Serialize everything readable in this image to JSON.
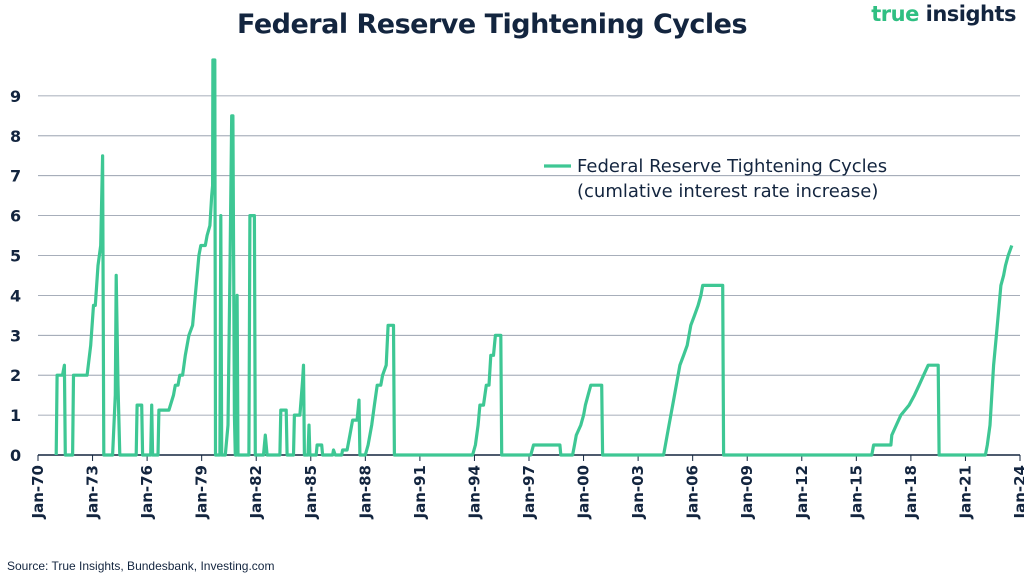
{
  "header": {
    "title": "Federal Reserve Tightening Cycles"
  },
  "brand": {
    "word1": "true",
    "word2": "insights"
  },
  "footer": {
    "source": "Source: True Insights, Bundesbank, Investing.com"
  },
  "colors": {
    "line": "#3ec794",
    "text": "#13253f",
    "grid": "#8a93a3",
    "axis": "#13253f"
  },
  "chart_data": {
    "type": "line",
    "title": "Federal Reserve Tightening Cycles",
    "xlabel": "",
    "ylabel": "",
    "ylim": [
      0,
      10
    ],
    "y_ticks": [
      0,
      1,
      2,
      3,
      4,
      5,
      6,
      7,
      8,
      9
    ],
    "x_range": [
      1970.0,
      2024.0
    ],
    "x_tick_labels": [
      "Jan-70",
      "Jan-73",
      "Jan-76",
      "Jan-79",
      "Jan-82",
      "Jan-85",
      "Jan-88",
      "Jan-91",
      "Jan-94",
      "Jan-97",
      "Jan-00",
      "Jan-03",
      "Jan-06",
      "Jan-09",
      "Jan-12",
      "Jan-15",
      "Jan-18",
      "Jan-21",
      "Jan-24"
    ],
    "x_tick_years": [
      1970,
      1973,
      1976,
      1979,
      1982,
      1985,
      1988,
      1991,
      1994,
      1997,
      2000,
      2003,
      2006,
      2009,
      2012,
      2015,
      2018,
      2021,
      2024
    ],
    "grid": "horizontal",
    "legend": {
      "position": "top-right",
      "line1": "Federal Reserve Tightening Cycles",
      "line2": "(cumlative interest rate increase)"
    },
    "series": [
      {
        "name": "Federal Reserve Tightening Cycles (cumlative interest rate increase)",
        "points": [
          [
            1971.0,
            0
          ],
          [
            1971.05,
            2.0
          ],
          [
            1971.35,
            2.0
          ],
          [
            1971.45,
            2.25
          ],
          [
            1971.5,
            0
          ],
          [
            1971.9,
            0
          ],
          [
            1971.95,
            2.0
          ],
          [
            1972.7,
            2.0
          ],
          [
            1972.9,
            2.75
          ],
          [
            1973.05,
            3.75
          ],
          [
            1973.15,
            3.75
          ],
          [
            1973.3,
            4.75
          ],
          [
            1973.45,
            5.25
          ],
          [
            1973.55,
            7.5
          ],
          [
            1973.62,
            0
          ],
          [
            1974.1,
            0
          ],
          [
            1974.25,
            1.5
          ],
          [
            1974.3,
            4.5
          ],
          [
            1974.4,
            1.75
          ],
          [
            1974.5,
            0
          ],
          [
            1975.4,
            0
          ],
          [
            1975.45,
            1.25
          ],
          [
            1975.7,
            1.25
          ],
          [
            1975.75,
            0
          ],
          [
            1976.2,
            0
          ],
          [
            1976.25,
            1.25
          ],
          [
            1976.3,
            0
          ],
          [
            1976.6,
            0
          ],
          [
            1976.65,
            1.125
          ],
          [
            1977.2,
            1.125
          ],
          [
            1977.45,
            1.5
          ],
          [
            1977.55,
            1.75
          ],
          [
            1977.7,
            1.75
          ],
          [
            1977.8,
            2.0
          ],
          [
            1977.95,
            2.0
          ],
          [
            1978.1,
            2.5
          ],
          [
            1978.3,
            3.0
          ],
          [
            1978.5,
            3.25
          ],
          [
            1978.65,
            4.0
          ],
          [
            1978.85,
            5.0
          ],
          [
            1978.95,
            5.25
          ],
          [
            1979.2,
            5.25
          ],
          [
            1979.3,
            5.5
          ],
          [
            1979.45,
            5.75
          ],
          [
            1979.55,
            6.5
          ],
          [
            1979.6,
            6.75
          ],
          [
            1979.62,
            9.9
          ],
          [
            1979.72,
            9.9
          ],
          [
            1979.76,
            0
          ],
          [
            1980.0,
            0
          ],
          [
            1980.05,
            6.0
          ],
          [
            1980.1,
            0
          ],
          [
            1980.3,
            0
          ],
          [
            1980.35,
            0.25
          ],
          [
            1980.45,
            0.75
          ],
          [
            1980.55,
            4.5
          ],
          [
            1980.65,
            8.5
          ],
          [
            1980.72,
            8.5
          ],
          [
            1980.8,
            1.0
          ],
          [
            1980.85,
            0
          ],
          [
            1980.9,
            0
          ],
          [
            1980.95,
            4.0
          ],
          [
            1981.0,
            0
          ],
          [
            1981.6,
            0
          ],
          [
            1981.65,
            6.0
          ],
          [
            1981.9,
            6.0
          ],
          [
            1981.95,
            0
          ],
          [
            1982.4,
            0
          ],
          [
            1982.5,
            0.5
          ],
          [
            1982.6,
            0
          ],
          [
            1983.3,
            0
          ],
          [
            1983.35,
            1.125
          ],
          [
            1983.65,
            1.125
          ],
          [
            1983.7,
            0
          ],
          [
            1984.05,
            0
          ],
          [
            1984.1,
            1.0
          ],
          [
            1984.4,
            1.0
          ],
          [
            1984.55,
            1.875
          ],
          [
            1984.6,
            2.25
          ],
          [
            1984.65,
            0
          ],
          [
            1984.85,
            0
          ],
          [
            1984.9,
            0.75
          ],
          [
            1984.95,
            0
          ],
          [
            1985.3,
            0
          ],
          [
            1985.35,
            0.25
          ],
          [
            1985.6,
            0.25
          ],
          [
            1985.65,
            0
          ],
          [
            1986.2,
            0
          ],
          [
            1986.25,
            0.125
          ],
          [
            1986.35,
            0
          ],
          [
            1986.7,
            0
          ],
          [
            1986.75,
            0.125
          ],
          [
            1987.0,
            0.125
          ],
          [
            1987.15,
            0.5
          ],
          [
            1987.3,
            0.875
          ],
          [
            1987.55,
            0.875
          ],
          [
            1987.65,
            1.375
          ],
          [
            1987.7,
            0
          ],
          [
            1988.0,
            0
          ],
          [
            1988.15,
            0.25
          ],
          [
            1988.35,
            0.75
          ],
          [
            1988.5,
            1.25
          ],
          [
            1988.65,
            1.75
          ],
          [
            1988.85,
            1.75
          ],
          [
            1988.95,
            2.0
          ],
          [
            1989.15,
            2.25
          ],
          [
            1989.25,
            3.25
          ],
          [
            1989.55,
            3.25
          ],
          [
            1989.6,
            0
          ],
          [
            1993.9,
            0
          ],
          [
            1994.05,
            0.25
          ],
          [
            1994.2,
            0.75
          ],
          [
            1994.3,
            1.25
          ],
          [
            1994.5,
            1.25
          ],
          [
            1994.65,
            1.75
          ],
          [
            1994.8,
            1.75
          ],
          [
            1994.9,
            2.5
          ],
          [
            1995.05,
            2.5
          ],
          [
            1995.15,
            3.0
          ],
          [
            1995.45,
            3.0
          ],
          [
            1995.5,
            0
          ],
          [
            1997.1,
            0
          ],
          [
            1997.25,
            0.25
          ],
          [
            1998.7,
            0.25
          ],
          [
            1998.75,
            0
          ],
          [
            1999.4,
            0
          ],
          [
            1999.5,
            0.25
          ],
          [
            1999.6,
            0.5
          ],
          [
            1999.85,
            0.75
          ],
          [
            2000.0,
            1.0
          ],
          [
            2000.1,
            1.25
          ],
          [
            2000.25,
            1.5
          ],
          [
            2000.4,
            1.75
          ],
          [
            2001.0,
            1.75
          ],
          [
            2001.05,
            0
          ],
          [
            2004.4,
            0
          ],
          [
            2004.5,
            0.25
          ],
          [
            2004.7,
            0.75
          ],
          [
            2004.9,
            1.25
          ],
          [
            2005.1,
            1.75
          ],
          [
            2005.3,
            2.25
          ],
          [
            2005.5,
            2.5
          ],
          [
            2005.7,
            2.75
          ],
          [
            2005.9,
            3.25
          ],
          [
            2006.1,
            3.5
          ],
          [
            2006.3,
            3.75
          ],
          [
            2006.45,
            4.0
          ],
          [
            2006.55,
            4.25
          ],
          [
            2007.65,
            4.25
          ],
          [
            2007.7,
            0
          ],
          [
            2015.85,
            0
          ],
          [
            2015.95,
            0.25
          ],
          [
            2016.9,
            0.25
          ],
          [
            2016.95,
            0.5
          ],
          [
            2017.2,
            0.75
          ],
          [
            2017.45,
            1.0
          ],
          [
            2017.9,
            1.25
          ],
          [
            2018.2,
            1.5
          ],
          [
            2018.45,
            1.75
          ],
          [
            2018.7,
            2.0
          ],
          [
            2018.95,
            2.25
          ],
          [
            2019.5,
            2.25
          ],
          [
            2019.55,
            0
          ],
          [
            2022.1,
            0
          ],
          [
            2022.2,
            0.25
          ],
          [
            2022.35,
            0.75
          ],
          [
            2022.45,
            1.5
          ],
          [
            2022.55,
            2.25
          ],
          [
            2022.7,
            3.0
          ],
          [
            2022.85,
            3.75
          ],
          [
            2022.95,
            4.25
          ],
          [
            2023.1,
            4.5
          ],
          [
            2023.2,
            4.75
          ],
          [
            2023.35,
            5.0
          ],
          [
            2023.55,
            5.25
          ]
        ]
      }
    ]
  }
}
